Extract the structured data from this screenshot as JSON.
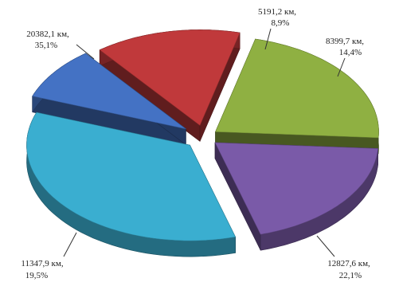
{
  "chart_data": {
    "type": "pie",
    "title": "",
    "slices": [
      {
        "value": 5191.2,
        "value_label": "5191,2 км,",
        "percent": 8.9,
        "percent_label": "8,9%",
        "color": "#4472c4"
      },
      {
        "value": 8399.7,
        "value_label": "8399,7 км,",
        "percent": 14.4,
        "percent_label": "14,4%",
        "color": "#c0393b"
      },
      {
        "value": 12827.6,
        "value_label": "12827,6 км,",
        "percent": 22.1,
        "percent_label": "22,1%",
        "color": "#8fb042"
      },
      {
        "value": 11347.9,
        "value_label": "11347,9 км,",
        "percent": 19.5,
        "percent_label": "19,5%",
        "color": "#7a5aa8"
      },
      {
        "value": 20382.1,
        "value_label": "20382,1 км,",
        "percent": 35.1,
        "percent_label": "35,1%",
        "color": "#3aaed0"
      }
    ],
    "style": "3d-exploded",
    "legend": "none"
  }
}
